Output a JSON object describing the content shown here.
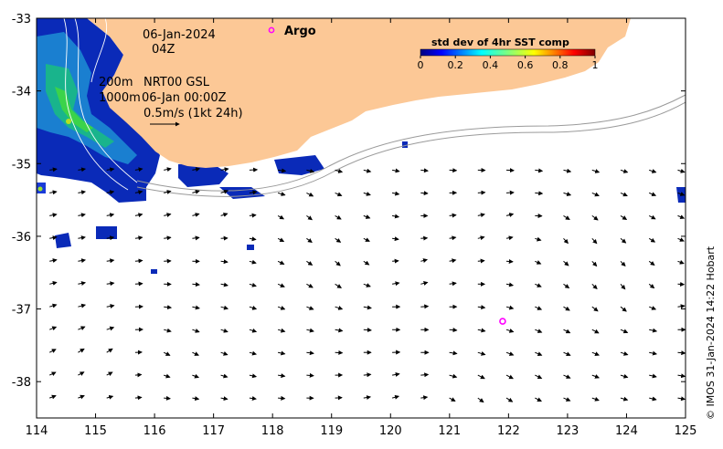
{
  "map": {
    "date_label": "06-Jan-2024",
    "time_label": "04Z",
    "contour_label": "200m",
    "contour_label2": "1000m",
    "product_label": "NRT00 GSL",
    "product_time": "06-Jan 00:00Z",
    "scale_label": "0.5m/s (1kt 24h)",
    "argo_label": "Argo",
    "credit": "© IMOS 31-Jan-2024 14:22 Hobart",
    "land_color": "#fcc896",
    "ocean_color": "#ffffff",
    "argo_color": "#ff00ff"
  },
  "colorbar": {
    "title": "std dev of 4hr SST comp",
    "ticks": [
      "0",
      "0.2",
      "0.4",
      "0.6",
      "0.8",
      "1"
    ],
    "colormap": "jet",
    "range": [
      0,
      1
    ]
  },
  "axes": {
    "x_ticks": [
      "114",
      "115",
      "116",
      "117",
      "118",
      "119",
      "120",
      "121",
      "122",
      "123",
      "124",
      "125"
    ],
    "y_ticks": [
      "-33",
      "-34",
      "-35",
      "-36",
      "-37",
      "-38"
    ],
    "xlim": [
      114,
      125
    ],
    "ylim": [
      -38.5,
      -33
    ]
  },
  "argo_floats": [
    {
      "lon": 121.9,
      "lat": -37.17
    }
  ]
}
